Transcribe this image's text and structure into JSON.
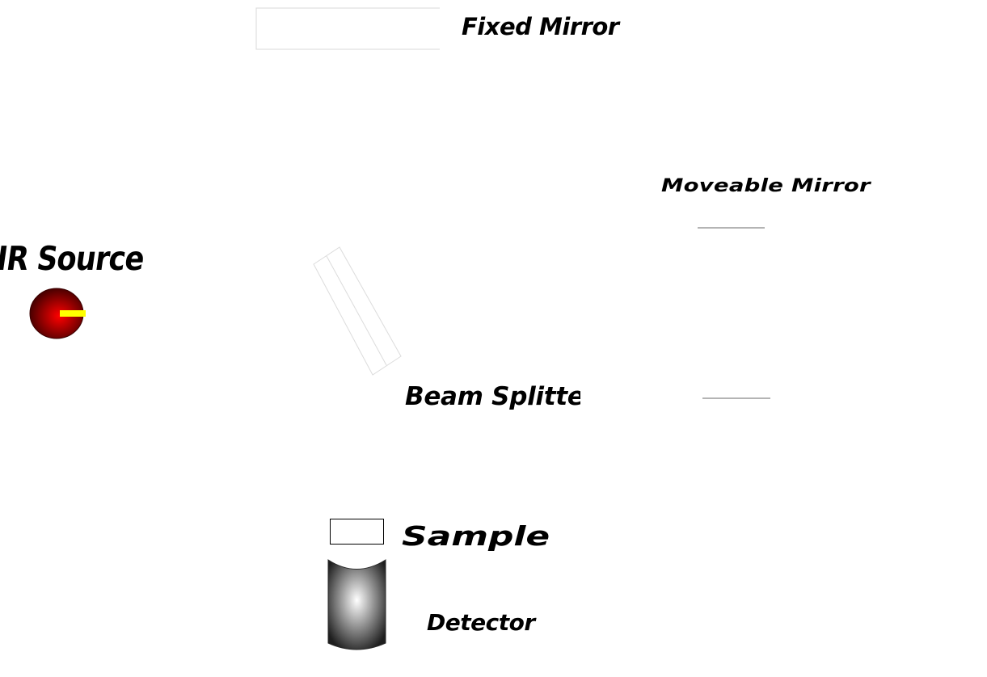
{
  "labels": {
    "fixed_mirror": "Fixed Mirror",
    "moveable_mirror": "Moveable Mirror",
    "ir_source": "IR Source",
    "beam_splitter": "Beam Splitter",
    "sample": "Sample",
    "detector": "Detector"
  },
  "colors": {
    "source_core": "#ff0000",
    "source_edge": "#4a0000",
    "source_indicator": "#ffff00",
    "detector_light": "#ffffff",
    "detector_dark": "#1e1e1e",
    "outline_light": "#d8d8d8",
    "outline_dark": "#000000"
  }
}
